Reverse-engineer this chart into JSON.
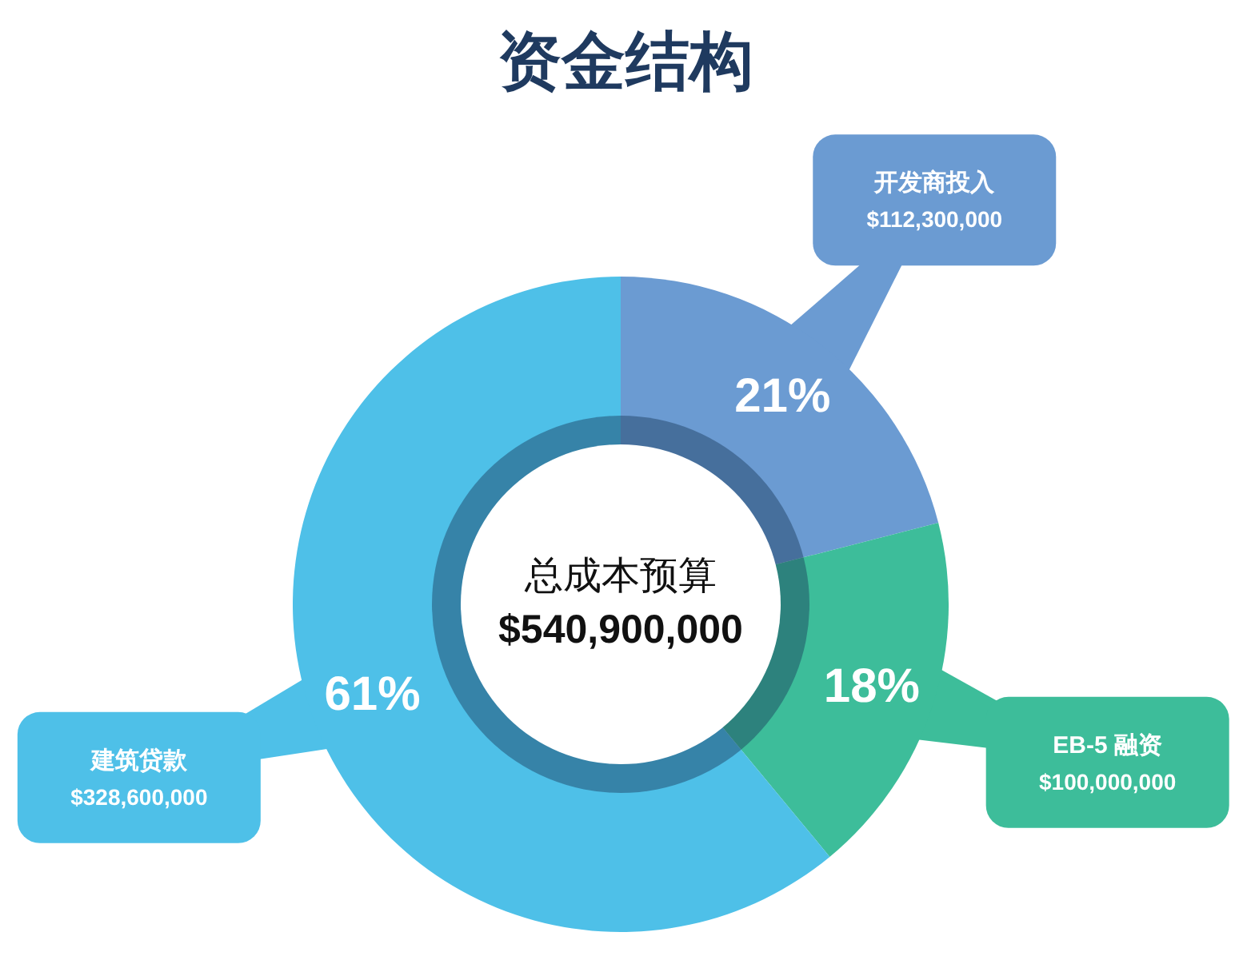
{
  "chart_data": {
    "type": "donut",
    "title": "资金结构",
    "categories": [
      "开发商投入",
      "EB-5 融资",
      "建筑贷款"
    ],
    "values": [
      21,
      18,
      61
    ],
    "colors": [
      "#6b9bd2",
      "#3dbd9a",
      "#4ec0e8"
    ],
    "value_labels": [
      "21%",
      "18%",
      "61%"
    ],
    "annotations": [
      "总成本预算",
      "$540,900,000",
      "$112,300,000",
      "$100,000,000",
      "$328,600,000"
    ]
  }
}
